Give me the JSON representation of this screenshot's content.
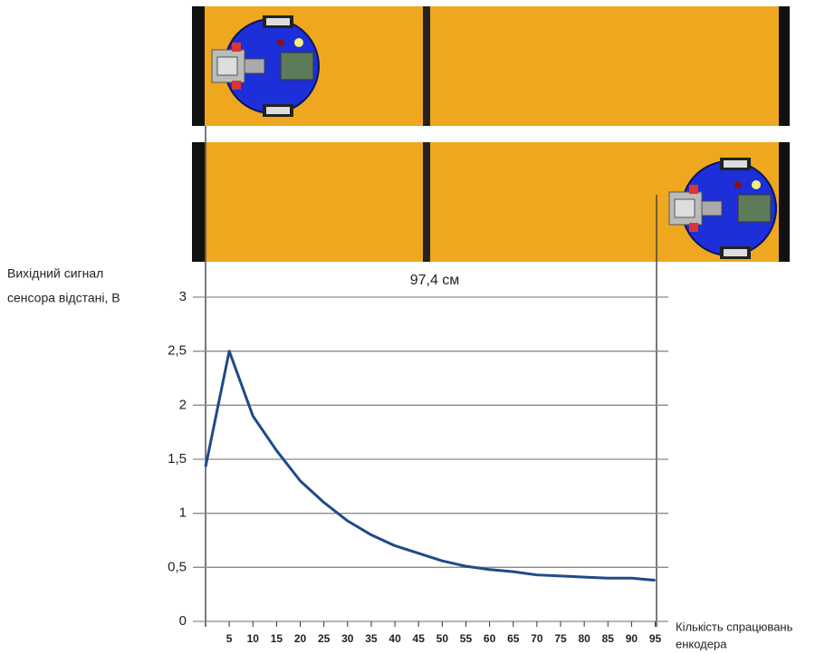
{
  "chart_data": {
    "type": "line",
    "y_label": [
      "Вихідний сигнал",
      "сенсора відстані, В"
    ],
    "x_label": [
      "Кількість спрацювань",
      "енкодера"
    ],
    "annotation": "97,4 см",
    "x": [
      0,
      5,
      10,
      15,
      20,
      25,
      30,
      35,
      40,
      45,
      50,
      55,
      60,
      65,
      70,
      75,
      80,
      85,
      90,
      95
    ],
    "series": [
      {
        "color": "#1f4a8a",
        "values": [
          1.43,
          2.5,
          1.9,
          1.58,
          1.3,
          1.1,
          0.93,
          0.8,
          0.7,
          0.63,
          0.56,
          0.51,
          0.48,
          0.46,
          0.43,
          0.42,
          0.41,
          0.4,
          0.4,
          0.38
        ]
      }
    ],
    "xlim": [
      0,
      97
    ],
    "xticks": [
      5,
      10,
      15,
      20,
      25,
      30,
      35,
      40,
      45,
      50,
      55,
      60,
      65,
      70,
      75,
      80,
      85,
      90,
      95
    ],
    "ylim": [
      0,
      3
    ],
    "yticks": [
      0,
      {
        "value": 0.5,
        "label": "0,5"
      },
      1,
      {
        "value": 1.5,
        "label": "1,5"
      },
      2,
      {
        "value": 2.5,
        "label": "2,5"
      },
      3
    ],
    "grid": true
  }
}
